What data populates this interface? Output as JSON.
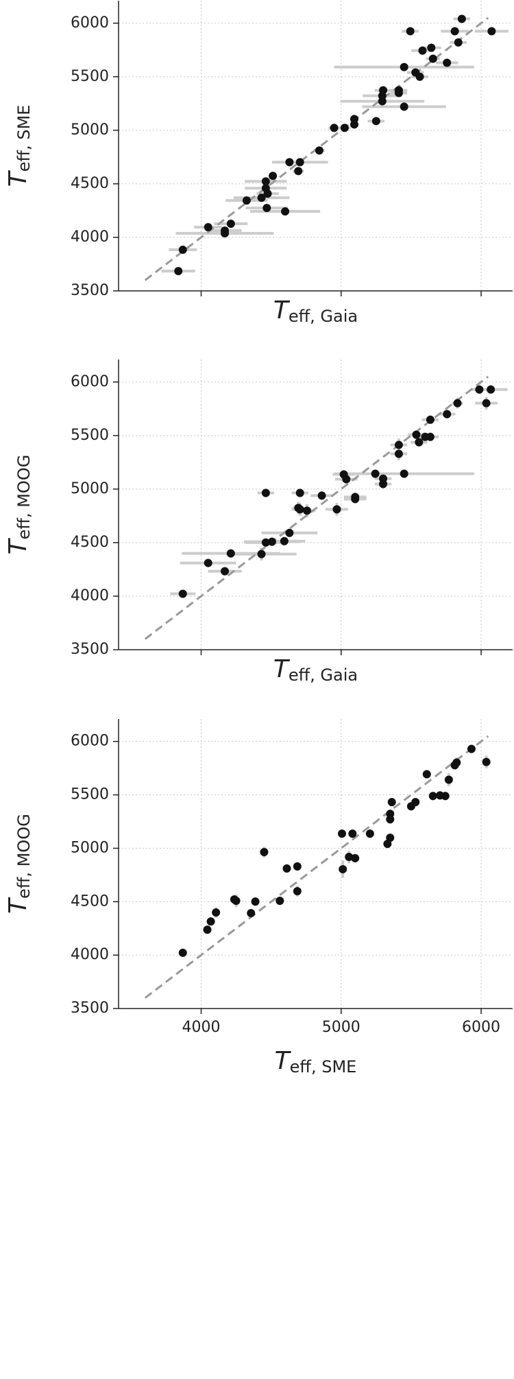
{
  "chart_data": [
    {
      "type": "scatter",
      "x_label": {
        "symbol": "T",
        "subscript": "eff, Gaia"
      },
      "y_label": {
        "symbol": "T",
        "subscript": "eff, SME"
      },
      "x": [
        5862,
        5494,
        5812,
        6075,
        5837,
        5581,
        5644,
        5656,
        5756,
        5450,
        5531,
        5562,
        5300,
        5412,
        5412,
        5294,
        5294,
        5450,
        5094,
        5094,
        5250,
        4950,
        5025,
        4844,
        4631,
        4706,
        4694,
        4512,
        4462,
        4462,
        4475,
        4431,
        4325,
        4469,
        4600,
        4050,
        4212,
        4169,
        4169,
        3869,
        3837
      ],
      "y": [
        6040,
        5925,
        5925,
        5925,
        5820,
        5744,
        5770,
        5668,
        5630,
        5590,
        5540,
        5500,
        5373,
        5373,
        5348,
        5322,
        5271,
        5220,
        5105,
        5054,
        5086,
        5022,
        5022,
        4811,
        4702,
        4702,
        4619,
        4574,
        4523,
        4459,
        4408,
        4370,
        4344,
        4274,
        4242,
        4095,
        4127,
        4063,
        4037,
        3884,
        3685
      ],
      "xerr": [
        60,
        60,
        100,
        120,
        60,
        80,
        70,
        50,
        80,
        500,
        60,
        60,
        60,
        60,
        60,
        140,
        300,
        300,
        30,
        30,
        60,
        40,
        40,
        40,
        80,
        200,
        40,
        30,
        150,
        150,
        80,
        200,
        150,
        150,
        250,
        100,
        120,
        120,
        350,
        100,
        120
      ],
      "xlim": [
        3410,
        6225
      ],
      "ylim": [
        3500,
        6210
      ],
      "xticks": [
        4000,
        5000,
        6000
      ],
      "yticks": [
        3500,
        4000,
        4500,
        5000,
        5500,
        6000
      ],
      "show_xtick_labels": false,
      "grid": true,
      "reference_line": [
        3600,
        6050
      ],
      "color": "#111111",
      "error_color": "#cccccc",
      "line_color": "#999999"
    },
    {
      "type": "scatter",
      "x_label": {
        "symbol": "T",
        "subscript": "eff, Gaia"
      },
      "y_label": {
        "symbol": "T",
        "subscript": "eff, MOOG"
      },
      "x": [
        5987,
        6069,
        5831,
        6037,
        5756,
        5637,
        5600,
        5537,
        5637,
        5556,
        5412,
        5412,
        5450,
        5244,
        5300,
        5300,
        5019,
        5037,
        5100,
        5100,
        4969,
        4862,
        4706,
        4462,
        4694,
        4706,
        4756,
        4631,
        4594,
        4506,
        4462,
        4431,
        4212,
        4050,
        4169,
        3869
      ],
      "y": [
        5930,
        5930,
        5802,
        5802,
        5700,
        5648,
        5488,
        5508,
        5488,
        5437,
        5412,
        5329,
        5143,
        5143,
        5098,
        5047,
        5137,
        5092,
        4926,
        4907,
        4811,
        4939,
        4964,
        4964,
        4824,
        4811,
        4798,
        4591,
        4514,
        4508,
        4501,
        4393,
        4399,
        4310,
        4233,
        4022
      ],
      "xerr": [
        60,
        120,
        40,
        80,
        60,
        60,
        60,
        60,
        60,
        60,
        60,
        60,
        500,
        80,
        60,
        60,
        80,
        80,
        80,
        80,
        80,
        80,
        60,
        60,
        40,
        60,
        60,
        200,
        150,
        200,
        150,
        250,
        350,
        200,
        120,
        90
      ],
      "yerr": [
        40,
        40,
        50,
        60,
        40,
        40,
        40,
        40,
        40,
        40,
        60,
        60,
        40,
        40,
        40,
        40,
        40,
        40,
        40,
        40,
        60,
        40,
        40,
        40,
        60,
        60,
        60,
        40,
        40,
        40,
        40,
        60,
        40,
        40,
        40,
        30
      ],
      "xlim": [
        3410,
        6225
      ],
      "ylim": [
        3500,
        6210
      ],
      "xticks": [
        4000,
        5000,
        6000
      ],
      "yticks": [
        3500,
        4000,
        4500,
        5000,
        5500,
        6000
      ],
      "show_xtick_labels": false,
      "grid": true,
      "reference_line": [
        3600,
        6050
      ],
      "color": "#111111",
      "error_color": "#cccccc",
      "line_color": "#999999"
    },
    {
      "type": "scatter",
      "x_label": {
        "symbol": "T",
        "subscript": "eff, SME"
      },
      "y_label": {
        "symbol": "T",
        "subscript": "eff, MOOG"
      },
      "x": [
        5931,
        6037,
        5825,
        5812,
        5612,
        5769,
        5706,
        5744,
        5656,
        5531,
        5500,
        5362,
        5350,
        5350,
        5206,
        5081,
        5006,
        5350,
        5331,
        5056,
        5100,
        5012,
        4687,
        4612,
        4450,
        4687,
        4562,
        4387,
        4250,
        4237,
        4356,
        4106,
        4069,
        4044,
        3869
      ],
      "y": [
        5930,
        5808,
        5802,
        5777,
        5693,
        5642,
        5495,
        5489,
        5489,
        5432,
        5393,
        5432,
        5322,
        5271,
        5137,
        5137,
        5137,
        5098,
        5041,
        4919,
        4907,
        4804,
        4830,
        4811,
        4964,
        4598,
        4508,
        4501,
        4508,
        4521,
        4393,
        4399,
        4315,
        4238,
        4022
      ],
      "yerr": [
        40,
        60,
        50,
        40,
        40,
        60,
        40,
        40,
        40,
        40,
        40,
        40,
        40,
        40,
        40,
        40,
        40,
        40,
        40,
        60,
        40,
        80,
        40,
        40,
        50,
        50,
        40,
        40,
        60,
        40,
        40,
        50,
        40,
        40,
        30
      ],
      "xlim": [
        3410,
        6225
      ],
      "ylim": [
        3500,
        6210
      ],
      "xticks": [
        4000,
        5000,
        6000
      ],
      "yticks": [
        3500,
        4000,
        4500,
        5000,
        5500,
        6000
      ],
      "show_xtick_labels": true,
      "grid": true,
      "reference_line": [
        3600,
        6050
      ],
      "color": "#111111",
      "error_color": "#cccccc",
      "line_color": "#999999"
    }
  ]
}
